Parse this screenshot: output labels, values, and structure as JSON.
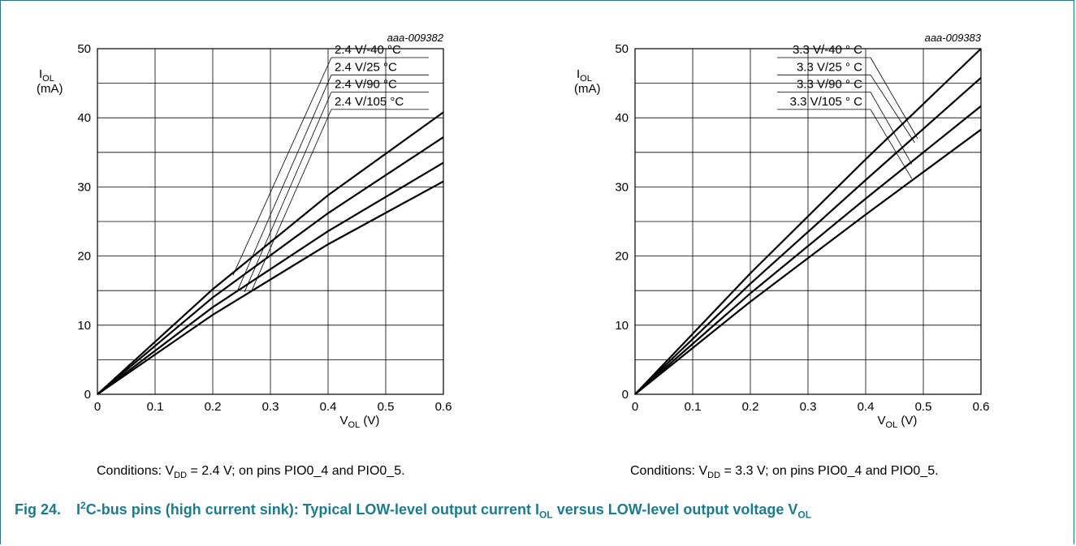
{
  "chart_data": [
    {
      "type": "line",
      "id_label": "aaa-009382",
      "ylabel_main": "I",
      "ylabel_sub": "OL",
      "ylabel_unit": "(mA)",
      "xlabel_main": "V",
      "xlabel_sub": "OL",
      "xlabel_unit": "(V)",
      "xlim": [
        0,
        0.6
      ],
      "ylim": [
        0,
        50
      ],
      "xticks": [
        "0",
        "0.1",
        "0.2",
        "0.3",
        "0.4",
        "0.5",
        "0.6"
      ],
      "yticks": [
        "0",
        "10",
        "20",
        "30",
        "40",
        "50"
      ],
      "grid": true,
      "series": [
        {
          "name": "2.4 V/-40  °C",
          "x": [
            0,
            0.2,
            0.4,
            0.6
          ],
          "y": [
            0,
            15.2,
            28.8,
            40.8
          ]
        },
        {
          "name": "2.4 V/25 °C",
          "x": [
            0,
            0.2,
            0.4,
            0.6
          ],
          "y": [
            0,
            14.0,
            26.2,
            37.2
          ]
        },
        {
          "name": "2.4 V/90 °C",
          "x": [
            0,
            0.2,
            0.4,
            0.6
          ],
          "y": [
            0,
            12.6,
            23.6,
            33.5
          ]
        },
        {
          "name": "2.4 V/105 °C",
          "x": [
            0,
            0.2,
            0.4,
            0.6
          ],
          "y": [
            0,
            11.5,
            21.7,
            30.8
          ]
        }
      ],
      "annotations": [
        {
          "text": "2.4 V/-40  °C",
          "value": 50,
          "pt": [
            0.235,
            17.2
          ]
        },
        {
          "text": "2.4 V/25 °C",
          "value": 47.5,
          "pt": [
            0.243,
            15.0
          ]
        },
        {
          "text": "2.4 V/90 °C",
          "value": 45,
          "pt": [
            0.255,
            14.8
          ]
        },
        {
          "text": "2.4 V/105 °C",
          "value": 42.5,
          "pt": [
            0.267,
            14.9
          ]
        }
      ],
      "label_side": "right",
      "conditions_text": "Conditions: V",
      "conditions_sub": "DD",
      "conditions_rest": " = 2.4 V; on pins PIO0_4 and PIO0_5."
    },
    {
      "type": "line",
      "id_label": "aaa-009383",
      "ylabel_main": "I",
      "ylabel_sub": "OL",
      "ylabel_unit": "(mA)",
      "xlabel_main": "V",
      "xlabel_sub": "OL",
      "xlabel_unit": "(V)",
      "xlim": [
        0,
        0.6
      ],
      "ylim": [
        0,
        50
      ],
      "xticks": [
        "0",
        "0.1",
        "0.2",
        "0.3",
        "0.4",
        "0.5",
        "0.6"
      ],
      "yticks": [
        "0",
        "10",
        "20",
        "30",
        "40",
        "50"
      ],
      "grid": true,
      "series": [
        {
          "name": "3.3 V/-40 ° C",
          "x": [
            0,
            0.2,
            0.4,
            0.6
          ],
          "y": [
            0,
            17.5,
            34.0,
            50.0
          ]
        },
        {
          "name": "3.3 V/25 ° C",
          "x": [
            0,
            0.2,
            0.4,
            0.6
          ],
          "y": [
            0,
            16.0,
            31.0,
            45.8
          ]
        },
        {
          "name": "3.3 V/90 ° C",
          "x": [
            0,
            0.2,
            0.4,
            0.6
          ],
          "y": [
            0,
            14.6,
            28.3,
            41.7
          ]
        },
        {
          "name": "3.3 V/105 ° C",
          "x": [
            0,
            0.2,
            0.4,
            0.6
          ],
          "y": [
            0,
            13.4,
            26.0,
            38.3
          ]
        }
      ],
      "annotations": [
        {
          "text": "3.3 V/-40 ° C",
          "value": 50,
          "pt": [
            0.49,
            37.0
          ]
        },
        {
          "text": "3.3 V/25 ° C",
          "value": 47.5,
          "pt": [
            0.485,
            36.4
          ]
        },
        {
          "text": "3.3 V/90 ° C",
          "value": 45,
          "pt": [
            0.48,
            33.3
          ]
        },
        {
          "text": "3.3 V/105 ° C",
          "value": 42.5,
          "pt": [
            0.48,
            31.2
          ]
        }
      ],
      "label_side": "left",
      "conditions_text": "Conditions: V",
      "conditions_sub": "DD",
      "conditions_rest": " = 3.3 V; on pins PIO0_4 and PIO0_5."
    }
  ],
  "figure": {
    "number": "Fig 24.",
    "part1": "I",
    "part1_sup": "2",
    "part2": "C-bus pins (high current sink): Typical LOW-level output current I",
    "part2_sub": "OL",
    "part3": " versus LOW-level output voltage V",
    "part3_sub": "OL"
  }
}
